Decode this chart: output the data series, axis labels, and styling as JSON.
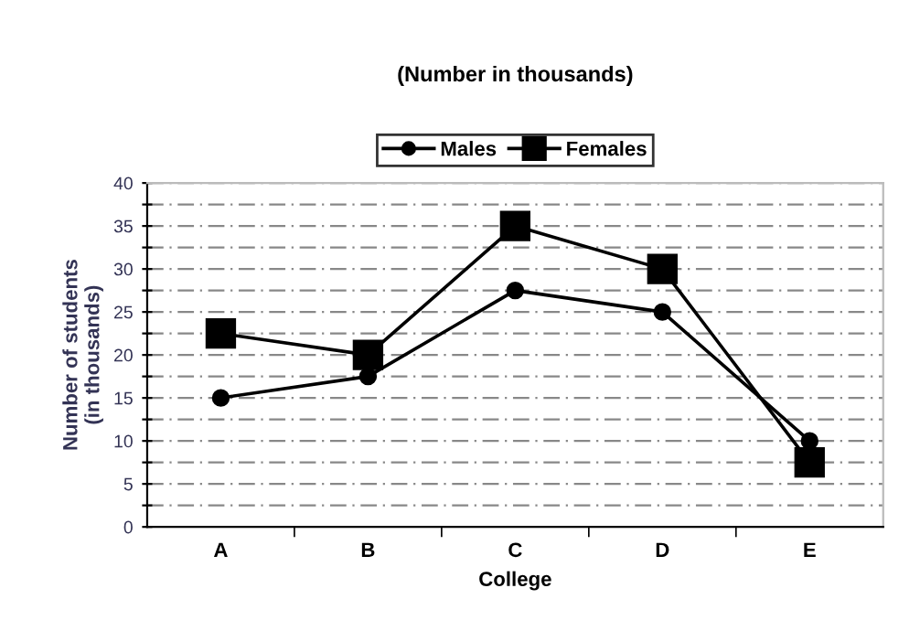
{
  "chart_data": {
    "type": "line",
    "title": "(Number in thousands)",
    "xlabel": "College",
    "ylabel": "Number of students\n(in thousands)",
    "categories": [
      "A",
      "B",
      "C",
      "D",
      "E"
    ],
    "series": [
      {
        "name": "Males",
        "color": "#000000",
        "marker": "circle",
        "values": [
          15,
          17.5,
          27.5,
          25,
          10
        ]
      },
      {
        "name": "Females",
        "color": "#000000",
        "marker": "square",
        "values": [
          22.5,
          20,
          35,
          30,
          7.5
        ]
      }
    ],
    "ylim": [
      0,
      40
    ],
    "yticks": [
      0,
      {
        "value": 2.5,
        "label": null
      },
      5,
      {
        "value": 7.5,
        "label": null
      },
      10,
      {
        "value": 12.5,
        "label": null
      },
      15,
      {
        "value": 17.5,
        "label": null
      },
      20,
      {
        "value": 22.5,
        "label": null
      },
      25,
      {
        "value": 27.5,
        "label": null
      },
      30,
      {
        "value": 32.5,
        "label": null
      },
      35,
      {
        "value": 37.5,
        "label": null
      },
      40
    ],
    "grid": "y",
    "legend": "top",
    "line_style": "solid"
  }
}
